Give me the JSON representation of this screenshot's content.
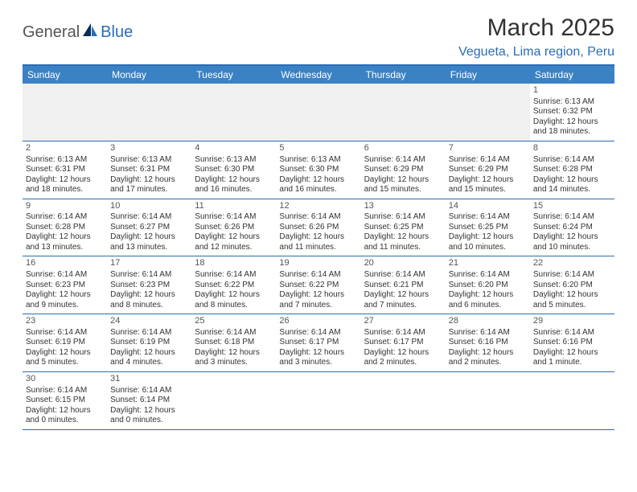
{
  "logo": {
    "part1": "General",
    "part2": "Blue"
  },
  "title": "March 2025",
  "location": "Vegueta, Lima region, Peru",
  "colors": {
    "header_bg": "#3b82c4",
    "border": "#2a6db8",
    "empty_week_bg": "#f0f0f0",
    "text": "#333333",
    "location_text": "#2a6db8"
  },
  "day_names": [
    "Sunday",
    "Monday",
    "Tuesday",
    "Wednesday",
    "Thursday",
    "Friday",
    "Saturday"
  ],
  "weeks": [
    [
      null,
      null,
      null,
      null,
      null,
      null,
      {
        "d": "1",
        "sr": "6:13 AM",
        "ss": "6:32 PM",
        "dl1": "12 hours",
        "dl2": "and 18 minutes."
      }
    ],
    [
      {
        "d": "2",
        "sr": "6:13 AM",
        "ss": "6:31 PM",
        "dl1": "12 hours",
        "dl2": "and 18 minutes."
      },
      {
        "d": "3",
        "sr": "6:13 AM",
        "ss": "6:31 PM",
        "dl1": "12 hours",
        "dl2": "and 17 minutes."
      },
      {
        "d": "4",
        "sr": "6:13 AM",
        "ss": "6:30 PM",
        "dl1": "12 hours",
        "dl2": "and 16 minutes."
      },
      {
        "d": "5",
        "sr": "6:13 AM",
        "ss": "6:30 PM",
        "dl1": "12 hours",
        "dl2": "and 16 minutes."
      },
      {
        "d": "6",
        "sr": "6:14 AM",
        "ss": "6:29 PM",
        "dl1": "12 hours",
        "dl2": "and 15 minutes."
      },
      {
        "d": "7",
        "sr": "6:14 AM",
        "ss": "6:29 PM",
        "dl1": "12 hours",
        "dl2": "and 15 minutes."
      },
      {
        "d": "8",
        "sr": "6:14 AM",
        "ss": "6:28 PM",
        "dl1": "12 hours",
        "dl2": "and 14 minutes."
      }
    ],
    [
      {
        "d": "9",
        "sr": "6:14 AM",
        "ss": "6:28 PM",
        "dl1": "12 hours",
        "dl2": "and 13 minutes."
      },
      {
        "d": "10",
        "sr": "6:14 AM",
        "ss": "6:27 PM",
        "dl1": "12 hours",
        "dl2": "and 13 minutes."
      },
      {
        "d": "11",
        "sr": "6:14 AM",
        "ss": "6:26 PM",
        "dl1": "12 hours",
        "dl2": "and 12 minutes."
      },
      {
        "d": "12",
        "sr": "6:14 AM",
        "ss": "6:26 PM",
        "dl1": "12 hours",
        "dl2": "and 11 minutes."
      },
      {
        "d": "13",
        "sr": "6:14 AM",
        "ss": "6:25 PM",
        "dl1": "12 hours",
        "dl2": "and 11 minutes."
      },
      {
        "d": "14",
        "sr": "6:14 AM",
        "ss": "6:25 PM",
        "dl1": "12 hours",
        "dl2": "and 10 minutes."
      },
      {
        "d": "15",
        "sr": "6:14 AM",
        "ss": "6:24 PM",
        "dl1": "12 hours",
        "dl2": "and 10 minutes."
      }
    ],
    [
      {
        "d": "16",
        "sr": "6:14 AM",
        "ss": "6:23 PM",
        "dl1": "12 hours",
        "dl2": "and 9 minutes."
      },
      {
        "d": "17",
        "sr": "6:14 AM",
        "ss": "6:23 PM",
        "dl1": "12 hours",
        "dl2": "and 8 minutes."
      },
      {
        "d": "18",
        "sr": "6:14 AM",
        "ss": "6:22 PM",
        "dl1": "12 hours",
        "dl2": "and 8 minutes."
      },
      {
        "d": "19",
        "sr": "6:14 AM",
        "ss": "6:22 PM",
        "dl1": "12 hours",
        "dl2": "and 7 minutes."
      },
      {
        "d": "20",
        "sr": "6:14 AM",
        "ss": "6:21 PM",
        "dl1": "12 hours",
        "dl2": "and 7 minutes."
      },
      {
        "d": "21",
        "sr": "6:14 AM",
        "ss": "6:20 PM",
        "dl1": "12 hours",
        "dl2": "and 6 minutes."
      },
      {
        "d": "22",
        "sr": "6:14 AM",
        "ss": "6:20 PM",
        "dl1": "12 hours",
        "dl2": "and 5 minutes."
      }
    ],
    [
      {
        "d": "23",
        "sr": "6:14 AM",
        "ss": "6:19 PM",
        "dl1": "12 hours",
        "dl2": "and 5 minutes."
      },
      {
        "d": "24",
        "sr": "6:14 AM",
        "ss": "6:19 PM",
        "dl1": "12 hours",
        "dl2": "and 4 minutes."
      },
      {
        "d": "25",
        "sr": "6:14 AM",
        "ss": "6:18 PM",
        "dl1": "12 hours",
        "dl2": "and 3 minutes."
      },
      {
        "d": "26",
        "sr": "6:14 AM",
        "ss": "6:17 PM",
        "dl1": "12 hours",
        "dl2": "and 3 minutes."
      },
      {
        "d": "27",
        "sr": "6:14 AM",
        "ss": "6:17 PM",
        "dl1": "12 hours",
        "dl2": "and 2 minutes."
      },
      {
        "d": "28",
        "sr": "6:14 AM",
        "ss": "6:16 PM",
        "dl1": "12 hours",
        "dl2": "and 2 minutes."
      },
      {
        "d": "29",
        "sr": "6:14 AM",
        "ss": "6:16 PM",
        "dl1": "12 hours",
        "dl2": "and 1 minute."
      }
    ],
    [
      {
        "d": "30",
        "sr": "6:14 AM",
        "ss": "6:15 PM",
        "dl1": "12 hours",
        "dl2": "and 0 minutes."
      },
      {
        "d": "31",
        "sr": "6:14 AM",
        "ss": "6:14 PM",
        "dl1": "12 hours",
        "dl2": "and 0 minutes."
      },
      null,
      null,
      null,
      null,
      null
    ]
  ],
  "labels": {
    "sunrise_prefix": "Sunrise: ",
    "sunset_prefix": "Sunset: ",
    "daylight_prefix": "Daylight: "
  }
}
